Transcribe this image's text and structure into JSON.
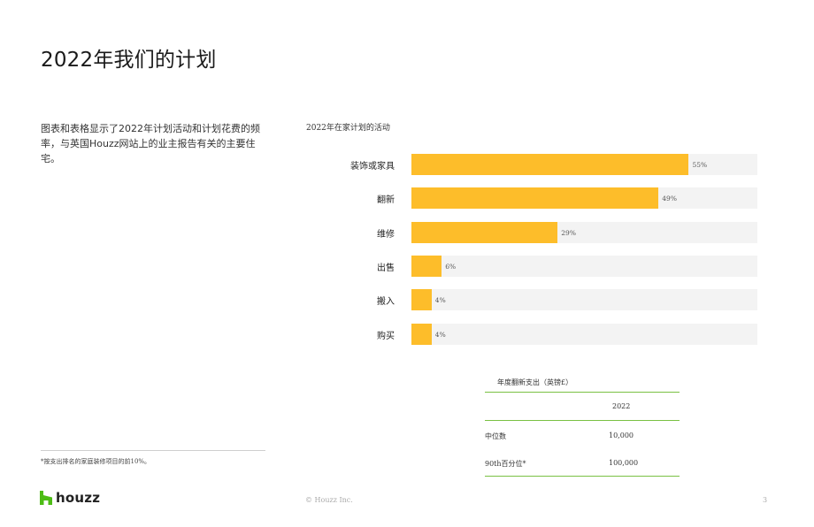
{
  "page": {
    "title": "2022年我们的计划",
    "intro": "图表和表格显示了2022年计划活动和计划花费的频率，与英国Houzz网站上的业主报告有关的主要住宅。",
    "footnote": "*按支出排名的家庭装修项目的前10%。",
    "copyright": "© Houzz Inc.",
    "page_number": "3"
  },
  "logo": {
    "text": "houzz",
    "icon": "houzz-h-logo-icon",
    "color": "#4dbc15"
  },
  "chart_data": {
    "type": "bar",
    "orientation": "horizontal",
    "title": "2022年在家计划的活动",
    "categories": [
      "装饰或家具",
      "翻新",
      "维修",
      "出售",
      "搬入",
      "购买"
    ],
    "values": [
      55,
      49,
      29,
      6,
      4,
      4
    ],
    "value_labels": [
      "55%",
      "49%",
      "29%",
      "6%",
      "4%",
      "4%"
    ],
    "unit": "%",
    "xlim": [
      0,
      68.6
    ],
    "grid": false,
    "bar_color": "#fdbd2a",
    "track_color": "#f3f3f3"
  },
  "table": {
    "title": "年度翻新支出（英镑£）",
    "column_header": "2022",
    "rows": [
      {
        "label": "中位数",
        "value": "10,000"
      },
      {
        "label": "90th百分位*",
        "value": "100,000"
      }
    ],
    "rule_color": "#7ac143"
  }
}
